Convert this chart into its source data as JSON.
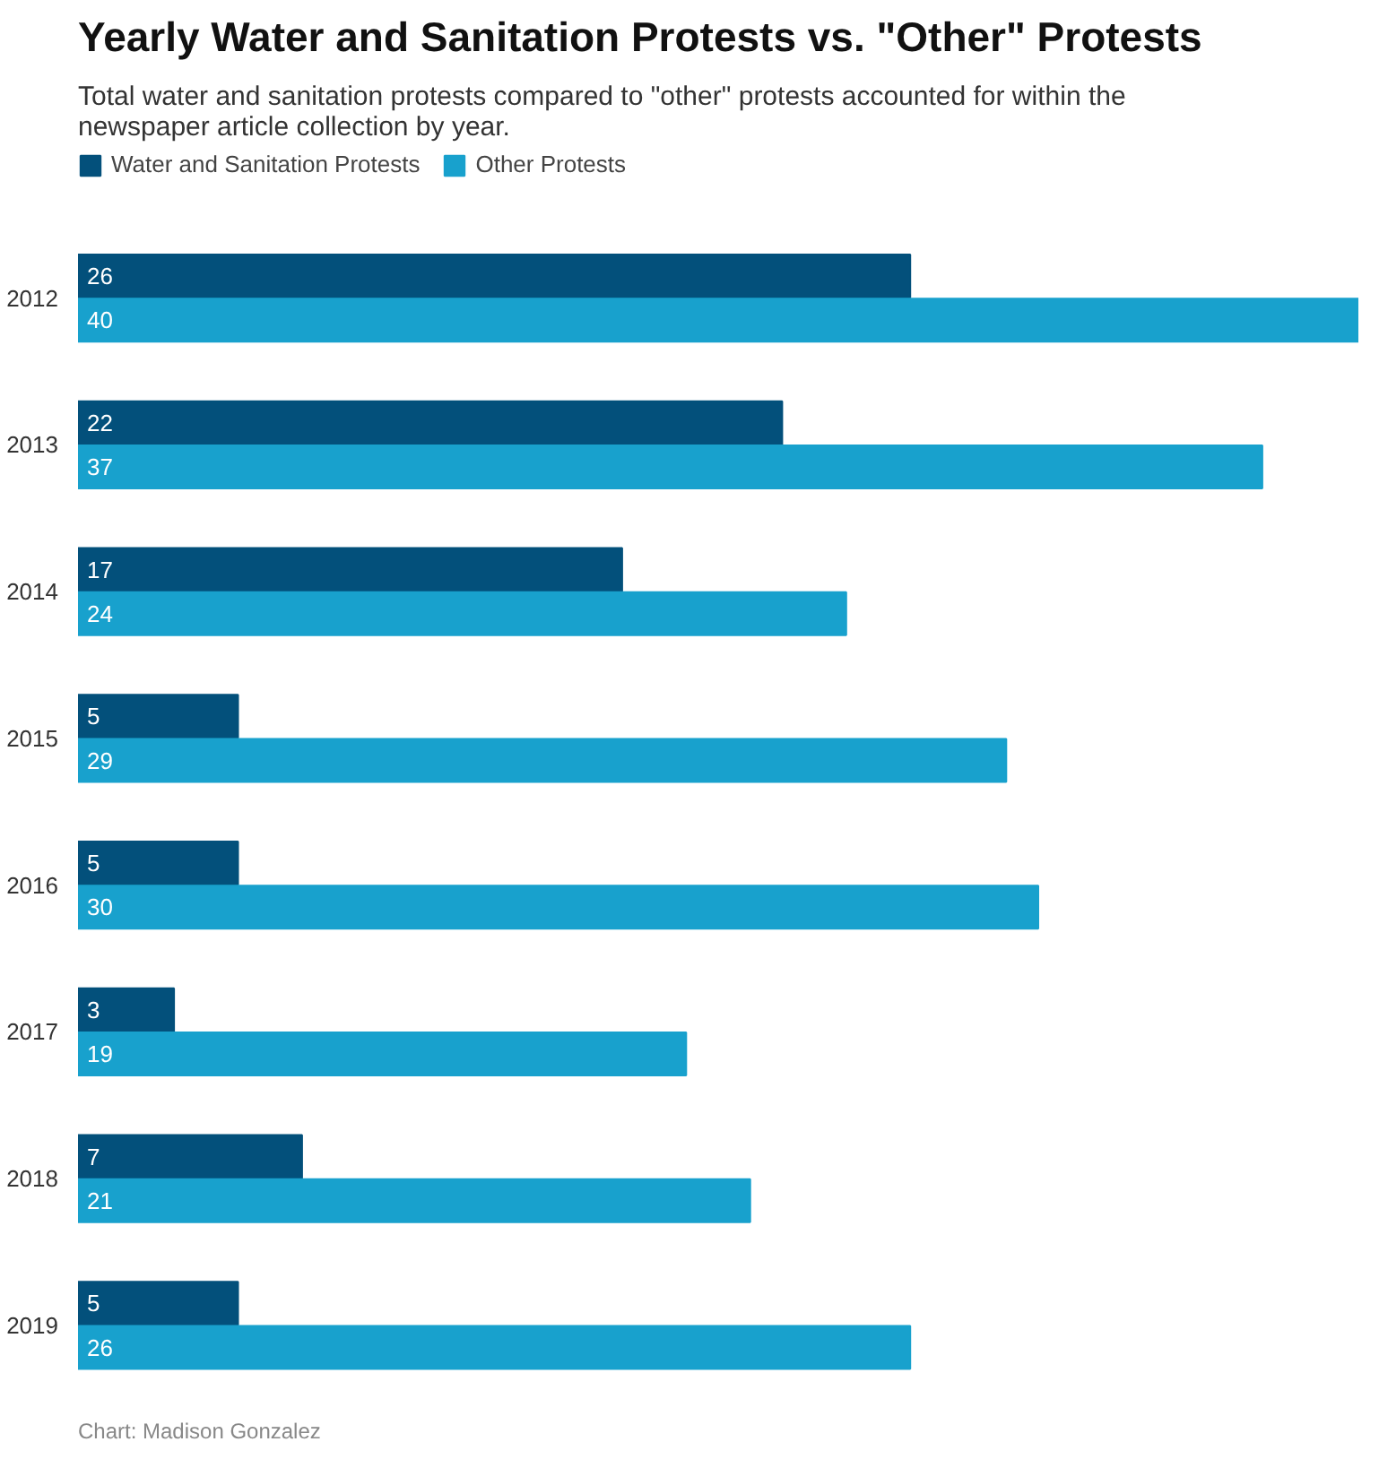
{
  "chart_data": {
    "type": "bar",
    "orientation": "horizontal",
    "title": "Yearly Water and Sanitation Protests vs. \"Other\" Protests",
    "subtitle": "Total water and sanitation protests compared to \"other\" protests accounted for within the newspaper article collection by year.",
    "categories": [
      "2012",
      "2013",
      "2014",
      "2015",
      "2016",
      "2017",
      "2018",
      "2019"
    ],
    "series": [
      {
        "name": "Water and Sanitation Protests",
        "color": "#03507b",
        "values": [
          26,
          22,
          17,
          5,
          5,
          3,
          7,
          5
        ]
      },
      {
        "name": "Other Protests",
        "color": "#18a1cd",
        "values": [
          40,
          37,
          24,
          29,
          30,
          19,
          21,
          26
        ]
      }
    ],
    "xlim": [
      0,
      40
    ],
    "data_labels": true,
    "legend": "top left",
    "grid": false,
    "tick_labels": "y",
    "annotations": [
      "Chart: Madison Gonzalez"
    ]
  }
}
